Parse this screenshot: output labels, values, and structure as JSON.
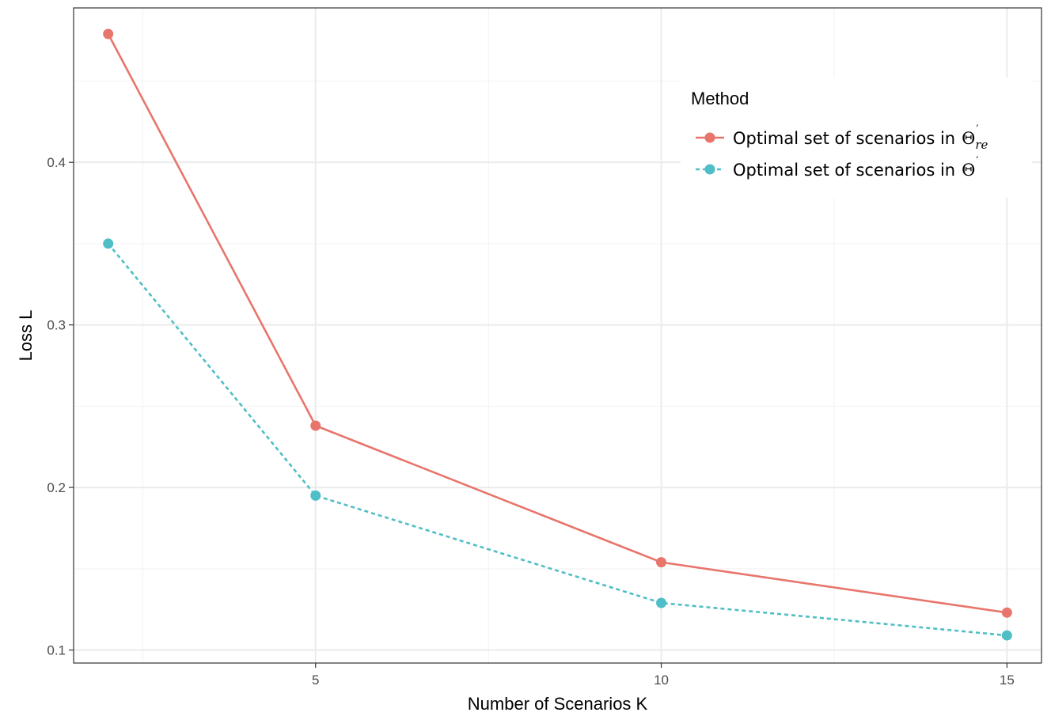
{
  "chart_data": {
    "type": "line",
    "title": "",
    "xlabel": "Number of Scenarios K",
    "ylabel": "Loss L",
    "xlim": [
      1.5,
      15.5
    ],
    "ylim": [
      0.092,
      0.495
    ],
    "x_ticks": [
      5,
      10,
      15
    ],
    "x_tick_labels": [
      "5",
      "10",
      "15"
    ],
    "x_minor_ticks": [
      2.5,
      7.5,
      12.5
    ],
    "y_ticks": [
      0.1,
      0.2,
      0.3,
      0.4
    ],
    "y_tick_labels": [
      "0.1",
      "0.2",
      "0.3",
      "0.4"
    ],
    "y_minor_ticks": [
      0.15,
      0.25,
      0.35,
      0.45
    ],
    "grid": true,
    "legend": {
      "title": "Method",
      "position": "top-right"
    },
    "series": [
      {
        "name": "Optimal set of scenarios in Θ′re",
        "label_text": "Optimal set of scenarios in",
        "symbol": "Θ",
        "superscript": "′",
        "subscript": "re",
        "color": "#E8756C",
        "dash": "solid",
        "x": [
          2,
          5,
          10,
          15
        ],
        "values": [
          0.479,
          0.238,
          0.154,
          0.123
        ]
      },
      {
        "name": "Optimal set of scenarios in Θ′",
        "label_text": "Optimal set of scenarios in",
        "symbol": "Θ",
        "superscript": "′",
        "subscript": "",
        "color": "#4FBEC6",
        "dash": "dashed",
        "x": [
          2,
          5,
          10,
          15
        ],
        "values": [
          0.35,
          0.195,
          0.129,
          0.109
        ]
      }
    ]
  }
}
